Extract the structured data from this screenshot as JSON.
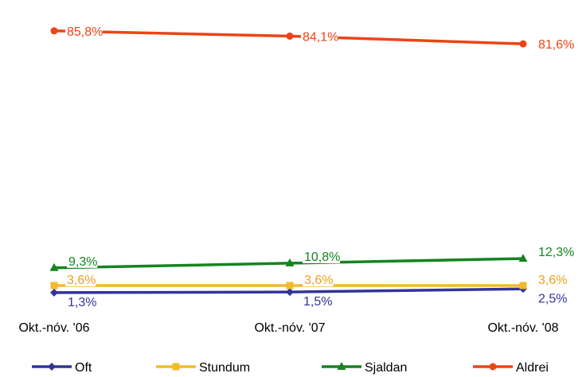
{
  "chart_data": {
    "type": "line",
    "title": "",
    "xlabel": "",
    "ylabel": "",
    "categories": [
      "Okt.-nóv. '06",
      "Okt.-nóv. '07",
      "Okt.-nóv. '08"
    ],
    "ylim": [
      0,
      90
    ],
    "grid": false,
    "legend_position": "bottom",
    "series": [
      {
        "name": "Oft",
        "values": [
          1.3,
          1.5,
          2.5
        ],
        "labels": [
          "1,3%",
          "1,5%",
          "2,5%"
        ],
        "color": "#333399",
        "marker": "diamond",
        "label_color": "#333399"
      },
      {
        "name": "Stundum",
        "values": [
          3.6,
          3.6,
          3.6
        ],
        "labels": [
          "3,6%",
          "3,6%",
          "3,6%"
        ],
        "color": "#F2B92C",
        "marker": "square",
        "label_color": "#E8A317"
      },
      {
        "name": "Sjaldan",
        "values": [
          9.3,
          10.8,
          12.3
        ],
        "labels": [
          "9,3%",
          "10,8%",
          "12,3%"
        ],
        "color": "#15841F",
        "marker": "triangle",
        "label_color": "#15841F"
      },
      {
        "name": "Aldrei",
        "values": [
          85.8,
          84.1,
          81.6
        ],
        "labels": [
          "85,8%",
          "84,1%",
          "81,6%"
        ],
        "color": "#EE4314",
        "marker": "circle",
        "label_color": "#EE4314"
      }
    ]
  }
}
